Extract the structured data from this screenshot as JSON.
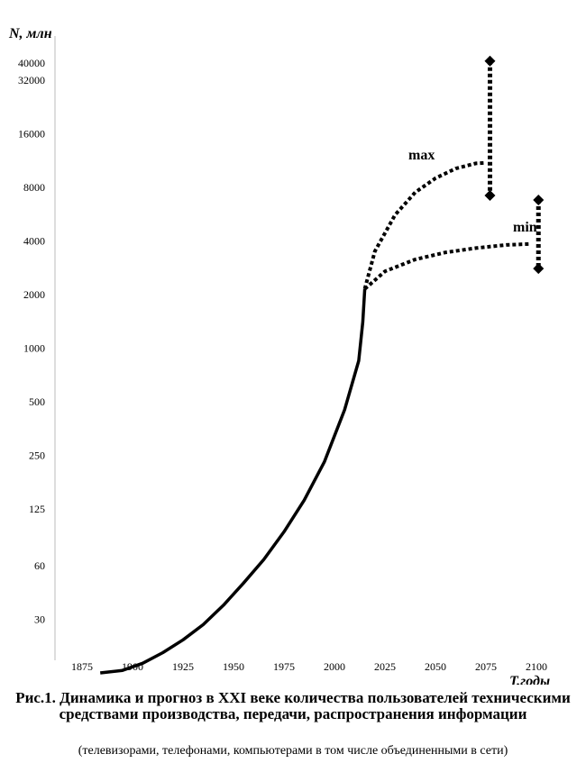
{
  "chart_data": {
    "type": "line",
    "y_axis": {
      "title": "N, млн",
      "scale": "log",
      "ticks": [
        30,
        60,
        125,
        250,
        500,
        1000,
        2000,
        4000,
        8000,
        16000,
        32000,
        40000
      ],
      "tick_labels": [
        "30",
        "60",
        "125",
        "250",
        "500",
        "1000",
        "2000",
        "4000",
        "8000",
        "16000",
        "32000",
        "40000"
      ]
    },
    "x_axis": {
      "title": "T,годы",
      "ticks": [
        1875,
        1900,
        1925,
        1950,
        1975,
        2000,
        2025,
        2050,
        2075,
        2100
      ],
      "tick_labels": [
        "1875",
        "1900",
        "1925",
        "1950",
        "1975",
        "2000",
        "2025",
        "2050",
        "2075",
        "2100"
      ]
    },
    "grid": false,
    "series": [
      {
        "style": "solid",
        "points": [
          [
            1884,
            15
          ],
          [
            1895,
            15.5
          ],
          [
            1905,
            17
          ],
          [
            1915,
            19.5
          ],
          [
            1925,
            23
          ],
          [
            1935,
            28
          ],
          [
            1945,
            36
          ],
          [
            1955,
            48
          ],
          [
            1965,
            65
          ],
          [
            1975,
            93
          ],
          [
            1985,
            140
          ],
          [
            1995,
            230
          ],
          [
            2005,
            450
          ],
          [
            2012,
            850
          ],
          [
            2014,
            1400
          ],
          [
            2015,
            2150
          ]
        ]
      },
      {
        "name": "max",
        "style": "dotted",
        "points": [
          [
            2015,
            2150
          ],
          [
            2020,
            3500
          ],
          [
            2030,
            5600
          ],
          [
            2040,
            7500
          ],
          [
            2050,
            9000
          ],
          [
            2060,
            10200
          ],
          [
            2070,
            10900
          ],
          [
            2075,
            11000
          ]
        ]
      },
      {
        "name": "min",
        "style": "dotted",
        "points": [
          [
            2015,
            2150
          ],
          [
            2025,
            2700
          ],
          [
            2040,
            3150
          ],
          [
            2055,
            3450
          ],
          [
            2070,
            3650
          ],
          [
            2085,
            3800
          ],
          [
            2097,
            3850
          ]
        ]
      }
    ],
    "ranges": [
      {
        "label": "max",
        "x": 2077,
        "low": 7200,
        "high": 41000
      },
      {
        "label": "min",
        "x": 2101,
        "low": 2800,
        "high": 6800
      }
    ]
  },
  "caption": {
    "title": "Рис.1. Динамика и прогноз в XXI веке количества пользователей техническими средствами производства, передачи, распространения информации",
    "subtitle": "(телевизорами, телефонами, компьютерами в том числе объединенными в сети)"
  }
}
